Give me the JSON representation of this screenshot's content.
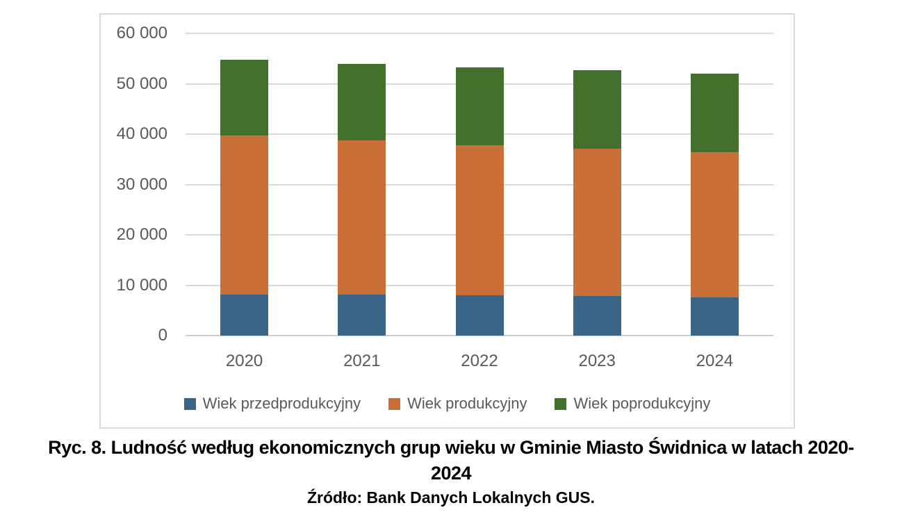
{
  "figure": {
    "caption_line1": "Ryc. 8. Ludność według ekonomicznych grup wieku w Gminie Miasto Świdnica w latach 2020-",
    "caption_line2": "2024",
    "source": "Źródło: Bank Danych Lokalnych GUS."
  },
  "chart_data": {
    "type": "bar",
    "stacked": true,
    "title": "",
    "xlabel": "",
    "ylabel": "",
    "categories": [
      "2020",
      "2021",
      "2022",
      "2023",
      "2024"
    ],
    "series": [
      {
        "key": "przedprodukcyjny",
        "name": "Wiek przedprodukcyjny",
        "color": "#3A6587",
        "values": [
          8200,
          8200,
          8000,
          7900,
          7600
        ]
      },
      {
        "key": "produkcyjny",
        "name": "Wiek produkcyjny",
        "color": "#C96F38",
        "values": [
          31500,
          30600,
          29800,
          29200,
          28800
        ]
      },
      {
        "key": "poprodukcyjny",
        "name": "Wiek poprodukcyjny",
        "color": "#44702D",
        "values": [
          15100,
          15200,
          15500,
          15600,
          15600
        ]
      }
    ],
    "ylim": [
      0,
      60000
    ],
    "ytick_step": 10000,
    "ytick_labels": [
      "0",
      "10 000",
      "20 000",
      "30 000",
      "40 000",
      "50 000",
      "60 000"
    ],
    "grid": true,
    "legend_position": "bottom"
  },
  "colors": {
    "grid": "#D9D9D9",
    "axis_text": "#595959",
    "frame_border": "#D9D9D9",
    "background": "#FFFFFF"
  }
}
